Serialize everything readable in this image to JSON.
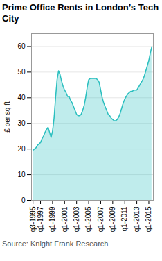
{
  "chart_data": {
    "type": "area",
    "title": "Prime Office Rents in London’s Tech City",
    "ylabel": "£ per sq ft",
    "caption": "Source: Knight Frank Research",
    "color": "#2abfbf",
    "grid": true,
    "xlim": [
      1995.5,
      2015.75
    ],
    "xticks": [
      {
        "value": 1995.75,
        "label": "q3-1995"
      },
      {
        "value": 1997.0,
        "label": "q1-1997"
      },
      {
        "value": 1999.0,
        "label": "q1-1999"
      },
      {
        "value": 2001.0,
        "label": "q1-2001"
      },
      {
        "value": 2003.0,
        "label": "q1-2003"
      },
      {
        "value": 2005.0,
        "label": "q1-2005"
      },
      {
        "value": 2007.0,
        "label": "q1-2007"
      },
      {
        "value": 2009.0,
        "label": "q1-2009"
      },
      {
        "value": 2011.0,
        "label": "q1-2011"
      },
      {
        "value": 2013.0,
        "label": "q1-2013"
      },
      {
        "value": 2015.0,
        "label": "q1-2015"
      }
    ],
    "ylim": [
      0,
      65
    ],
    "yticks": [
      0,
      10,
      20,
      30,
      40,
      50,
      60
    ],
    "x": [
      1995.75,
      1996.0,
      1996.25,
      1996.5,
      1996.75,
      1997.0,
      1997.25,
      1997.5,
      1997.75,
      1998.0,
      1998.25,
      1998.5,
      1998.75,
      1999.0,
      1999.25,
      1999.5,
      1999.75,
      2000.0,
      2000.25,
      2000.5,
      2000.75,
      2001.0,
      2001.25,
      2001.5,
      2001.75,
      2002.0,
      2002.25,
      2002.5,
      2002.75,
      2003.0,
      2003.25,
      2003.5,
      2003.75,
      2004.0,
      2004.25,
      2004.5,
      2004.75,
      2005.0,
      2005.25,
      2005.5,
      2005.75,
      2006.0,
      2006.25,
      2006.5,
      2006.75,
      2007.0,
      2007.25,
      2007.5,
      2007.75,
      2008.0,
      2008.25,
      2008.5,
      2008.75,
      2009.0,
      2009.25,
      2009.5,
      2009.75,
      2010.0,
      2010.25,
      2010.5,
      2010.75,
      2011.0,
      2011.25,
      2011.5,
      2011.75,
      2012.0,
      2012.25,
      2012.5,
      2012.75,
      2013.0,
      2013.25,
      2013.5,
      2013.75,
      2014.0,
      2014.25,
      2014.5,
      2014.75,
      2015.0,
      2015.25,
      2015.5
    ],
    "values": [
      19.5,
      20.0,
      20.5,
      21.5,
      22.0,
      22.5,
      24.0,
      25.0,
      26.5,
      27.5,
      28.5,
      26.5,
      24.5,
      27.0,
      32.0,
      40.0,
      47.0,
      50.5,
      49.0,
      46.5,
      44.5,
      43.0,
      42.0,
      40.5,
      40.5,
      39.0,
      38.0,
      36.5,
      35.0,
      33.5,
      33.0,
      33.0,
      33.5,
      35.0,
      37.0,
      40.0,
      44.0,
      47.0,
      47.5,
      47.5,
      47.5,
      47.5,
      47.5,
      47.0,
      46.0,
      43.0,
      40.0,
      38.0,
      36.5,
      35.0,
      33.5,
      33.0,
      32.0,
      31.5,
      31.0,
      31.0,
      31.5,
      32.5,
      34.0,
      36.0,
      38.0,
      39.5,
      40.5,
      41.5,
      42.0,
      42.5,
      42.5,
      43.0,
      43.0,
      43.0,
      44.0,
      45.0,
      46.0,
      47.0,
      48.5,
      50.5,
      52.5,
      54.5,
      57.5,
      60.0
    ]
  }
}
